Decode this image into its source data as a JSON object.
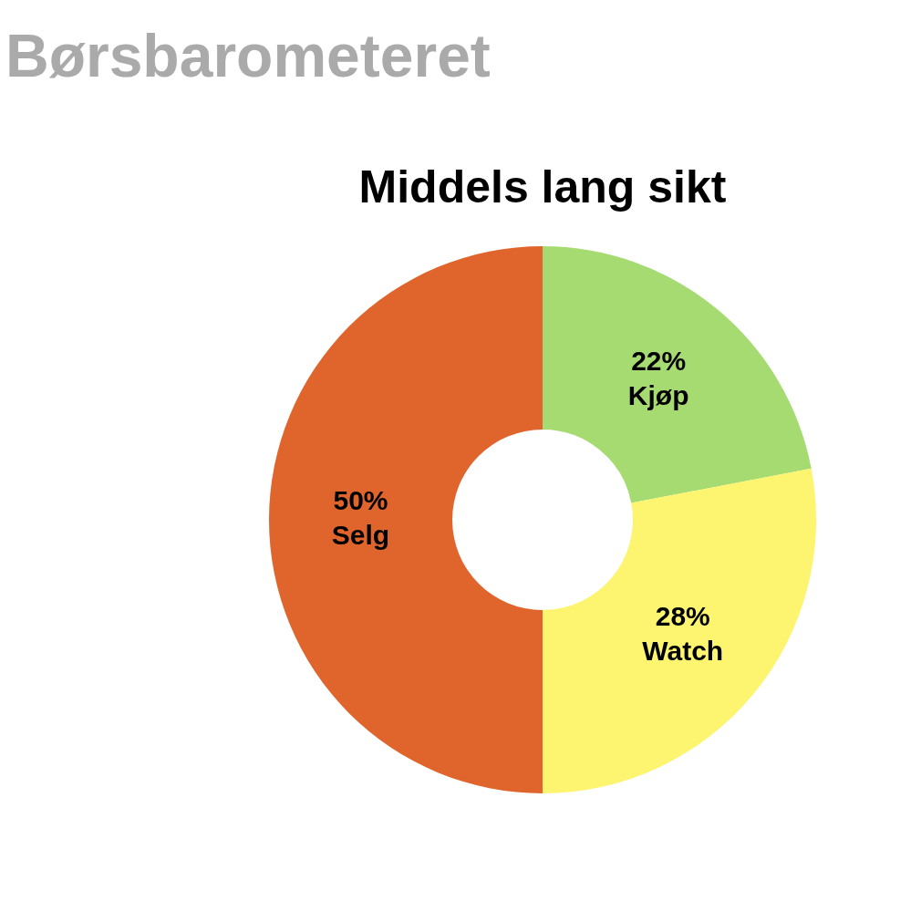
{
  "chart_data": {
    "type": "donut",
    "title": "Børsbarometeret",
    "subtitle": "Middels lang sikt",
    "categories": [
      "Kjøp",
      "Watch",
      "Selg"
    ],
    "values": [
      22,
      28,
      50
    ],
    "colors": [
      "#a6db72",
      "#fdf46f",
      "#e0652d"
    ],
    "value_labels": [
      "22%",
      "28%",
      "50%"
    ],
    "legend": false
  }
}
